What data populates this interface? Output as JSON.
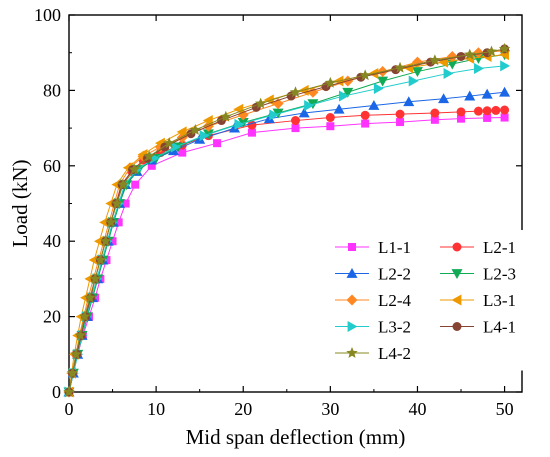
{
  "chart_data": {
    "type": "line",
    "title": "",
    "xlabel": "Mid span deflection (mm)",
    "ylabel": "Load (kN)",
    "xlim": [
      0,
      52
    ],
    "ylim": [
      0,
      100
    ],
    "xticks": [
      0,
      10,
      20,
      30,
      40,
      50
    ],
    "yticks": [
      0,
      20,
      40,
      60,
      80,
      100
    ],
    "grid": false,
    "legend_position": "bottom-right, two columns",
    "series": [
      {
        "name": "L1-1",
        "color": "#ff33ff",
        "marker": "square",
        "points": [
          [
            0,
            0
          ],
          [
            0.5,
            5
          ],
          [
            1,
            10
          ],
          [
            1.6,
            15
          ],
          [
            2.3,
            20
          ],
          [
            3,
            25
          ],
          [
            3.6,
            30
          ],
          [
            4.3,
            35
          ],
          [
            5,
            40
          ],
          [
            5.7,
            45
          ],
          [
            6.5,
            50
          ],
          [
            7.6,
            55
          ],
          [
            9.5,
            60
          ],
          [
            13,
            63.5
          ],
          [
            17,
            66
          ],
          [
            21,
            68.8
          ],
          [
            26,
            70
          ],
          [
            30,
            70.5
          ],
          [
            34,
            71.2
          ],
          [
            38,
            71.6
          ],
          [
            42,
            72.2
          ],
          [
            45,
            72.5
          ],
          [
            48,
            72.7
          ],
          [
            50,
            72.8
          ]
        ]
      },
      {
        "name": "L2-1",
        "color": "#ff3333",
        "marker": "circle",
        "points": [
          [
            0,
            0
          ],
          [
            0.4,
            5
          ],
          [
            0.8,
            10
          ],
          [
            1.3,
            15
          ],
          [
            1.8,
            20
          ],
          [
            2.4,
            25
          ],
          [
            3,
            30
          ],
          [
            3.6,
            35
          ],
          [
            4.2,
            40
          ],
          [
            4.8,
            45
          ],
          [
            5.4,
            50
          ],
          [
            6,
            55
          ],
          [
            7.2,
            58.5
          ],
          [
            8.5,
            61.5
          ],
          [
            10.5,
            63.5
          ],
          [
            13,
            65.5
          ],
          [
            16,
            68
          ],
          [
            21,
            70.8
          ],
          [
            26,
            72
          ],
          [
            30,
            72.8
          ],
          [
            34,
            73.4
          ],
          [
            38,
            73.7
          ],
          [
            42,
            74
          ],
          [
            45,
            74.3
          ],
          [
            47,
            74.5
          ],
          [
            48,
            74.6
          ],
          [
            49,
            74.7
          ],
          [
            50,
            74.8
          ]
        ]
      },
      {
        "name": "L2-2",
        "color": "#1a66e6",
        "marker": "triangle-up",
        "points": [
          [
            0,
            0
          ],
          [
            0.5,
            5
          ],
          [
            1,
            10
          ],
          [
            1.5,
            15
          ],
          [
            2.1,
            20
          ],
          [
            2.7,
            25
          ],
          [
            3.3,
            30
          ],
          [
            3.9,
            35
          ],
          [
            4.5,
            40
          ],
          [
            5.1,
            45
          ],
          [
            5.8,
            50
          ],
          [
            6.5,
            55
          ],
          [
            7.8,
            58.5
          ],
          [
            9.5,
            61.5
          ],
          [
            12,
            64
          ],
          [
            15,
            67
          ],
          [
            19,
            70
          ],
          [
            23,
            72.5
          ],
          [
            27,
            74
          ],
          [
            31,
            75
          ],
          [
            35,
            76
          ],
          [
            39,
            77
          ],
          [
            43,
            77.8
          ],
          [
            46,
            78.5
          ],
          [
            48,
            79
          ],
          [
            50,
            79.5
          ]
        ]
      },
      {
        "name": "L2-3",
        "color": "#11aa55",
        "marker": "triangle-down",
        "points": [
          [
            0,
            0
          ],
          [
            0.5,
            5
          ],
          [
            1,
            10
          ],
          [
            1.5,
            15
          ],
          [
            2.1,
            20
          ],
          [
            2.7,
            25
          ],
          [
            3.3,
            30
          ],
          [
            3.9,
            35
          ],
          [
            4.5,
            40
          ],
          [
            5.1,
            45
          ],
          [
            5.8,
            50
          ],
          [
            6.6,
            55
          ],
          [
            8,
            59
          ],
          [
            10,
            62
          ],
          [
            12.5,
            65
          ],
          [
            16,
            68.5
          ],
          [
            20,
            71.5
          ],
          [
            24,
            74
          ],
          [
            28,
            76.5
          ],
          [
            32,
            79.5
          ],
          [
            36,
            82.5
          ],
          [
            40,
            85
          ],
          [
            44,
            87
          ],
          [
            47,
            88.5
          ],
          [
            50,
            89.5
          ]
        ]
      },
      {
        "name": "L2-4",
        "color": "#ff8822",
        "marker": "diamond",
        "points": [
          [
            0,
            0
          ],
          [
            0.4,
            5
          ],
          [
            0.8,
            10
          ],
          [
            1.2,
            15
          ],
          [
            1.7,
            20
          ],
          [
            2.2,
            25
          ],
          [
            2.8,
            30
          ],
          [
            3.4,
            35
          ],
          [
            4,
            40
          ],
          [
            4.6,
            45
          ],
          [
            5.2,
            50
          ],
          [
            5.8,
            55
          ],
          [
            7,
            59.5
          ],
          [
            8.5,
            62.5
          ],
          [
            10.5,
            65
          ],
          [
            13,
            67.5
          ],
          [
            16,
            70.5
          ],
          [
            20,
            73.5
          ],
          [
            24,
            76.5
          ],
          [
            28,
            79.5
          ],
          [
            32,
            82.5
          ],
          [
            36,
            85
          ],
          [
            40,
            87.5
          ],
          [
            44,
            89
          ],
          [
            47,
            90
          ],
          [
            50,
            90.5
          ]
        ]
      },
      {
        "name": "L3-1",
        "color": "#ee9900",
        "marker": "triangle-left",
        "points": [
          [
            0,
            0
          ],
          [
            0.3,
            5
          ],
          [
            0.6,
            10
          ],
          [
            1,
            15
          ],
          [
            1.4,
            20
          ],
          [
            1.9,
            25
          ],
          [
            2.4,
            30
          ],
          [
            2.9,
            35
          ],
          [
            3.5,
            40
          ],
          [
            4.1,
            45
          ],
          [
            4.8,
            50
          ],
          [
            5.5,
            55
          ],
          [
            6.8,
            59.5
          ],
          [
            8.5,
            63
          ],
          [
            10.5,
            66
          ],
          [
            13,
            69
          ],
          [
            16,
            72
          ],
          [
            19.5,
            75
          ],
          [
            23,
            77.5
          ],
          [
            27,
            80
          ],
          [
            31,
            82.5
          ],
          [
            35,
            84.5
          ],
          [
            39,
            86
          ],
          [
            43,
            87.5
          ],
          [
            46,
            88.5
          ],
          [
            48,
            89
          ],
          [
            50,
            89.5
          ]
        ]
      },
      {
        "name": "L3-2",
        "color": "#22cccc",
        "marker": "triangle-right",
        "points": [
          [
            0,
            0
          ],
          [
            0.5,
            5
          ],
          [
            1,
            10
          ],
          [
            1.5,
            15
          ],
          [
            2,
            20
          ],
          [
            2.6,
            25
          ],
          [
            3.2,
            30
          ],
          [
            3.8,
            35
          ],
          [
            4.4,
            40
          ],
          [
            5,
            45
          ],
          [
            5.7,
            50
          ],
          [
            6.4,
            55
          ],
          [
            7.8,
            59
          ],
          [
            9.8,
            62
          ],
          [
            12.2,
            65
          ],
          [
            15.5,
            68
          ],
          [
            19.5,
            71
          ],
          [
            23.5,
            73.5
          ],
          [
            27.5,
            76
          ],
          [
            31.5,
            78.5
          ],
          [
            35.5,
            80.5
          ],
          [
            39.5,
            82.5
          ],
          [
            43.5,
            84.5
          ],
          [
            47,
            85.8
          ],
          [
            50,
            86.5
          ]
        ]
      },
      {
        "name": "L4-1",
        "color": "#884433",
        "marker": "circle",
        "points": [
          [
            0,
            0
          ],
          [
            0.4,
            5
          ],
          [
            0.9,
            10
          ],
          [
            1.4,
            15
          ],
          [
            1.9,
            20
          ],
          [
            2.5,
            25
          ],
          [
            3,
            30
          ],
          [
            3.6,
            35
          ],
          [
            4.2,
            40
          ],
          [
            4.8,
            45
          ],
          [
            5.4,
            50
          ],
          [
            6.1,
            55
          ],
          [
            7.3,
            59
          ],
          [
            9,
            62
          ],
          [
            11,
            65
          ],
          [
            14,
            68.5
          ],
          [
            17.5,
            72
          ],
          [
            21.5,
            75.5
          ],
          [
            25.5,
            78.5
          ],
          [
            29.5,
            81
          ],
          [
            33.5,
            83.5
          ],
          [
            37.5,
            85.5
          ],
          [
            41.5,
            87.5
          ],
          [
            45,
            89
          ],
          [
            48,
            90
          ],
          [
            50,
            91
          ]
        ]
      },
      {
        "name": "L4-2",
        "color": "#888822",
        "marker": "star",
        "points": [
          [
            0,
            0
          ],
          [
            0.4,
            5
          ],
          [
            0.8,
            10
          ],
          [
            1.3,
            15
          ],
          [
            1.8,
            20
          ],
          [
            2.4,
            25
          ],
          [
            3,
            30
          ],
          [
            3.6,
            35
          ],
          [
            4.2,
            40
          ],
          [
            4.8,
            45
          ],
          [
            5.5,
            50
          ],
          [
            6.2,
            55
          ],
          [
            7.5,
            59
          ],
          [
            9.2,
            62.5
          ],
          [
            11.5,
            66
          ],
          [
            14.5,
            69.5
          ],
          [
            18,
            73
          ],
          [
            22,
            76.5
          ],
          [
            26,
            79.5
          ],
          [
            30,
            82
          ],
          [
            34,
            84
          ],
          [
            38,
            86
          ],
          [
            42,
            88
          ],
          [
            46,
            89.5
          ],
          [
            48.5,
            90.3
          ],
          [
            50,
            91
          ]
        ]
      }
    ]
  }
}
